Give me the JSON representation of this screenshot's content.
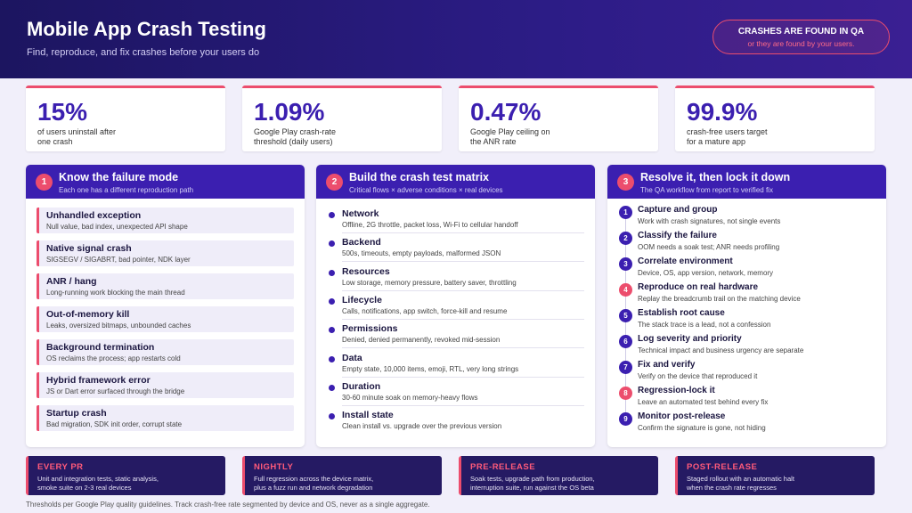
{
  "header": {
    "title": "Mobile App Crash Testing",
    "subtitle": "Find, reproduce, and fix crashes before your users do"
  },
  "callout": {
    "title": "CRASHES ARE FOUND IN QA",
    "subtitle": "or they are found by your users."
  },
  "stats": [
    {
      "value": "15%",
      "label": [
        "of users uninstall after",
        "one crash"
      ]
    },
    {
      "value": "1.09%",
      "label": [
        "Google Play crash-rate",
        "threshold (daily users)"
      ]
    },
    {
      "value": "0.47%",
      "label": [
        "Google Play ceiling on",
        "the ANR rate"
      ]
    },
    {
      "value": "99.9%",
      "label": [
        "crash-free users target",
        "for a mature app"
      ]
    }
  ],
  "panels": [
    {
      "number": "1",
      "title": "Know the failure mode",
      "subtitle": "Each one has a different reproduction path",
      "items": [
        {
          "title": "Unhandled exception",
          "desc": "Null value, bad index, unexpected API shape"
        },
        {
          "title": "Native signal crash",
          "desc": "SIGSEGV / SIGABRT, bad pointer, NDK layer"
        },
        {
          "title": "ANR / hang",
          "desc": "Long-running work blocking the main thread"
        },
        {
          "title": "Out-of-memory kill",
          "desc": "Leaks, oversized bitmaps, unbounded caches"
        },
        {
          "title": "Background termination",
          "desc": "OS reclaims the process; app restarts cold"
        },
        {
          "title": "Hybrid framework error",
          "desc": "JS or Dart error surfaced through the bridge"
        },
        {
          "title": "Startup crash",
          "desc": "Bad migration, SDK init order, corrupt state"
        }
      ]
    },
    {
      "number": "2",
      "title": "Build the crash test matrix",
      "subtitle": "Critical flows × adverse conditions × real devices",
      "items": [
        {
          "title": "Network",
          "desc": "Offline, 2G throttle, packet loss, Wi-Fi to cellular handoff"
        },
        {
          "title": "Backend",
          "desc": "500s, timeouts, empty payloads, malformed JSON"
        },
        {
          "title": "Resources",
          "desc": "Low storage, memory pressure, battery saver, throttling"
        },
        {
          "title": "Lifecycle",
          "desc": "Calls, notifications, app switch, force-kill and resume"
        },
        {
          "title": "Permissions",
          "desc": "Denied, denied permanently, revoked mid-session"
        },
        {
          "title": "Data",
          "desc": "Empty state, 10,000 items, emoji, RTL, very long strings"
        },
        {
          "title": "Duration",
          "desc": "30-60 minute soak on memory-heavy flows"
        },
        {
          "title": "Install state",
          "desc": "Clean install vs. upgrade over the previous version"
        }
      ]
    },
    {
      "number": "3",
      "title": "Resolve it, then lock it down",
      "subtitle": "The QA workflow from report to verified fix",
      "items": [
        {
          "number": "1",
          "title": "Capture and group",
          "desc": "Work with crash signatures, not single events"
        },
        {
          "number": "2",
          "title": "Classify the failure",
          "desc": "OOM needs a soak test; ANR needs profiling"
        },
        {
          "number": "3",
          "title": "Correlate environment",
          "desc": "Device, OS, app version, network, memory"
        },
        {
          "number": "4",
          "title": "Reproduce on real hardware",
          "desc": "Replay the breadcrumb trail on the matching device",
          "highlight": true
        },
        {
          "number": "5",
          "title": "Establish root cause",
          "desc": "The stack trace is a lead, not a confession"
        },
        {
          "number": "6",
          "title": "Log severity and priority",
          "desc": "Technical impact and business urgency are separate"
        },
        {
          "number": "7",
          "title": "Fix and verify",
          "desc": "Verify on the device that reproduced it"
        },
        {
          "number": "8",
          "title": "Regression-lock it",
          "desc": "Leave an automated test behind every fix",
          "highlight": true
        },
        {
          "number": "9",
          "title": "Monitor post-release",
          "desc": "Confirm the signature is gone, not hiding"
        }
      ]
    }
  ],
  "stages": [
    {
      "title": "EVERY PR",
      "desc": [
        "Unit and integration tests, static analysis,",
        "smoke suite on 2-3 real devices"
      ]
    },
    {
      "title": "NIGHTLY",
      "desc": [
        "Full regression across the device matrix,",
        "plus a fuzz run and network degradation"
      ]
    },
    {
      "title": "PRE-RELEASE",
      "desc": [
        "Soak tests, upgrade path from production,",
        "interruption suite, run against the OS beta"
      ]
    },
    {
      "title": "POST-RELEASE",
      "desc": [
        "Staged rollout with an automatic halt",
        "when the crash rate regresses"
      ]
    }
  ],
  "footer": "Thresholds per Google Play quality guidelines. Track crash-free rate segmented by device and OS, never as a single aggregate."
}
